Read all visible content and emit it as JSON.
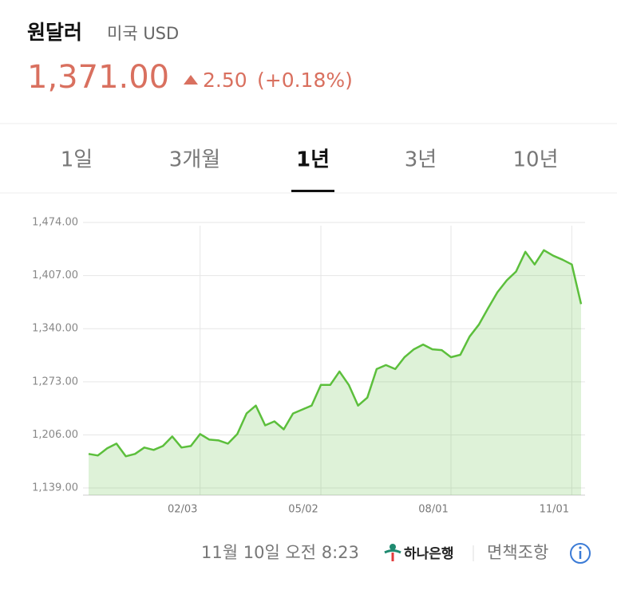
{
  "header": {
    "title": "원달러",
    "subtitle": "미국 USD",
    "price": "1,371.00",
    "change": "2.50",
    "change_pct": "(+0.18%)"
  },
  "tabs": [
    "1일",
    "3개월",
    "1년",
    "3년",
    "10년"
  ],
  "selected_tab": 2,
  "chart_data": {
    "type": "line",
    "categories": [
      null,
      null,
      null,
      null,
      null,
      null,
      null,
      null,
      null,
      null,
      null,
      null,
      "02/03",
      null,
      null,
      null,
      null,
      null,
      null,
      null,
      null,
      null,
      null,
      null,
      null,
      "05/02",
      null,
      null,
      null,
      null,
      null,
      null,
      null,
      null,
      null,
      null,
      null,
      null,
      null,
      "08/01",
      null,
      null,
      null,
      null,
      null,
      null,
      null,
      null,
      null,
      null,
      null,
      null,
      "11/01",
      null
    ],
    "values": [
      1182,
      1180,
      1189,
      1195,
      1179,
      1182,
      1190,
      1187,
      1192,
      1204,
      1190,
      1192,
      1207,
      1200,
      1199,
      1195,
      1207,
      1233,
      1243,
      1218,
      1223,
      1213,
      1233,
      1238,
      1243,
      1269,
      1269,
      1286,
      1269,
      1243,
      1253,
      1289,
      1294,
      1289,
      1304,
      1314,
      1320,
      1314,
      1313,
      1304,
      1307,
      1330,
      1345,
      1366,
      1386,
      1401,
      1412,
      1437,
      1421,
      1439,
      1432,
      1427,
      1421,
      1371
    ],
    "color": "#5cbf3c",
    "ylim": [
      1130,
      1476
    ],
    "yticks": [
      {
        "value": 1139,
        "label": "1,139.00"
      },
      {
        "value": 1206,
        "label": "1,206.00"
      },
      {
        "value": 1273,
        "label": "1,273.00"
      },
      {
        "value": 1340,
        "label": "1,340.00"
      },
      {
        "value": 1407,
        "label": "1,407.00"
      },
      {
        "value": 1474,
        "label": "1,474.00"
      }
    ],
    "grid": true
  },
  "footer": {
    "timestamp": "11월 10일 오전 8:23",
    "bank": "하나은행",
    "disclaimer": "면책조항"
  }
}
